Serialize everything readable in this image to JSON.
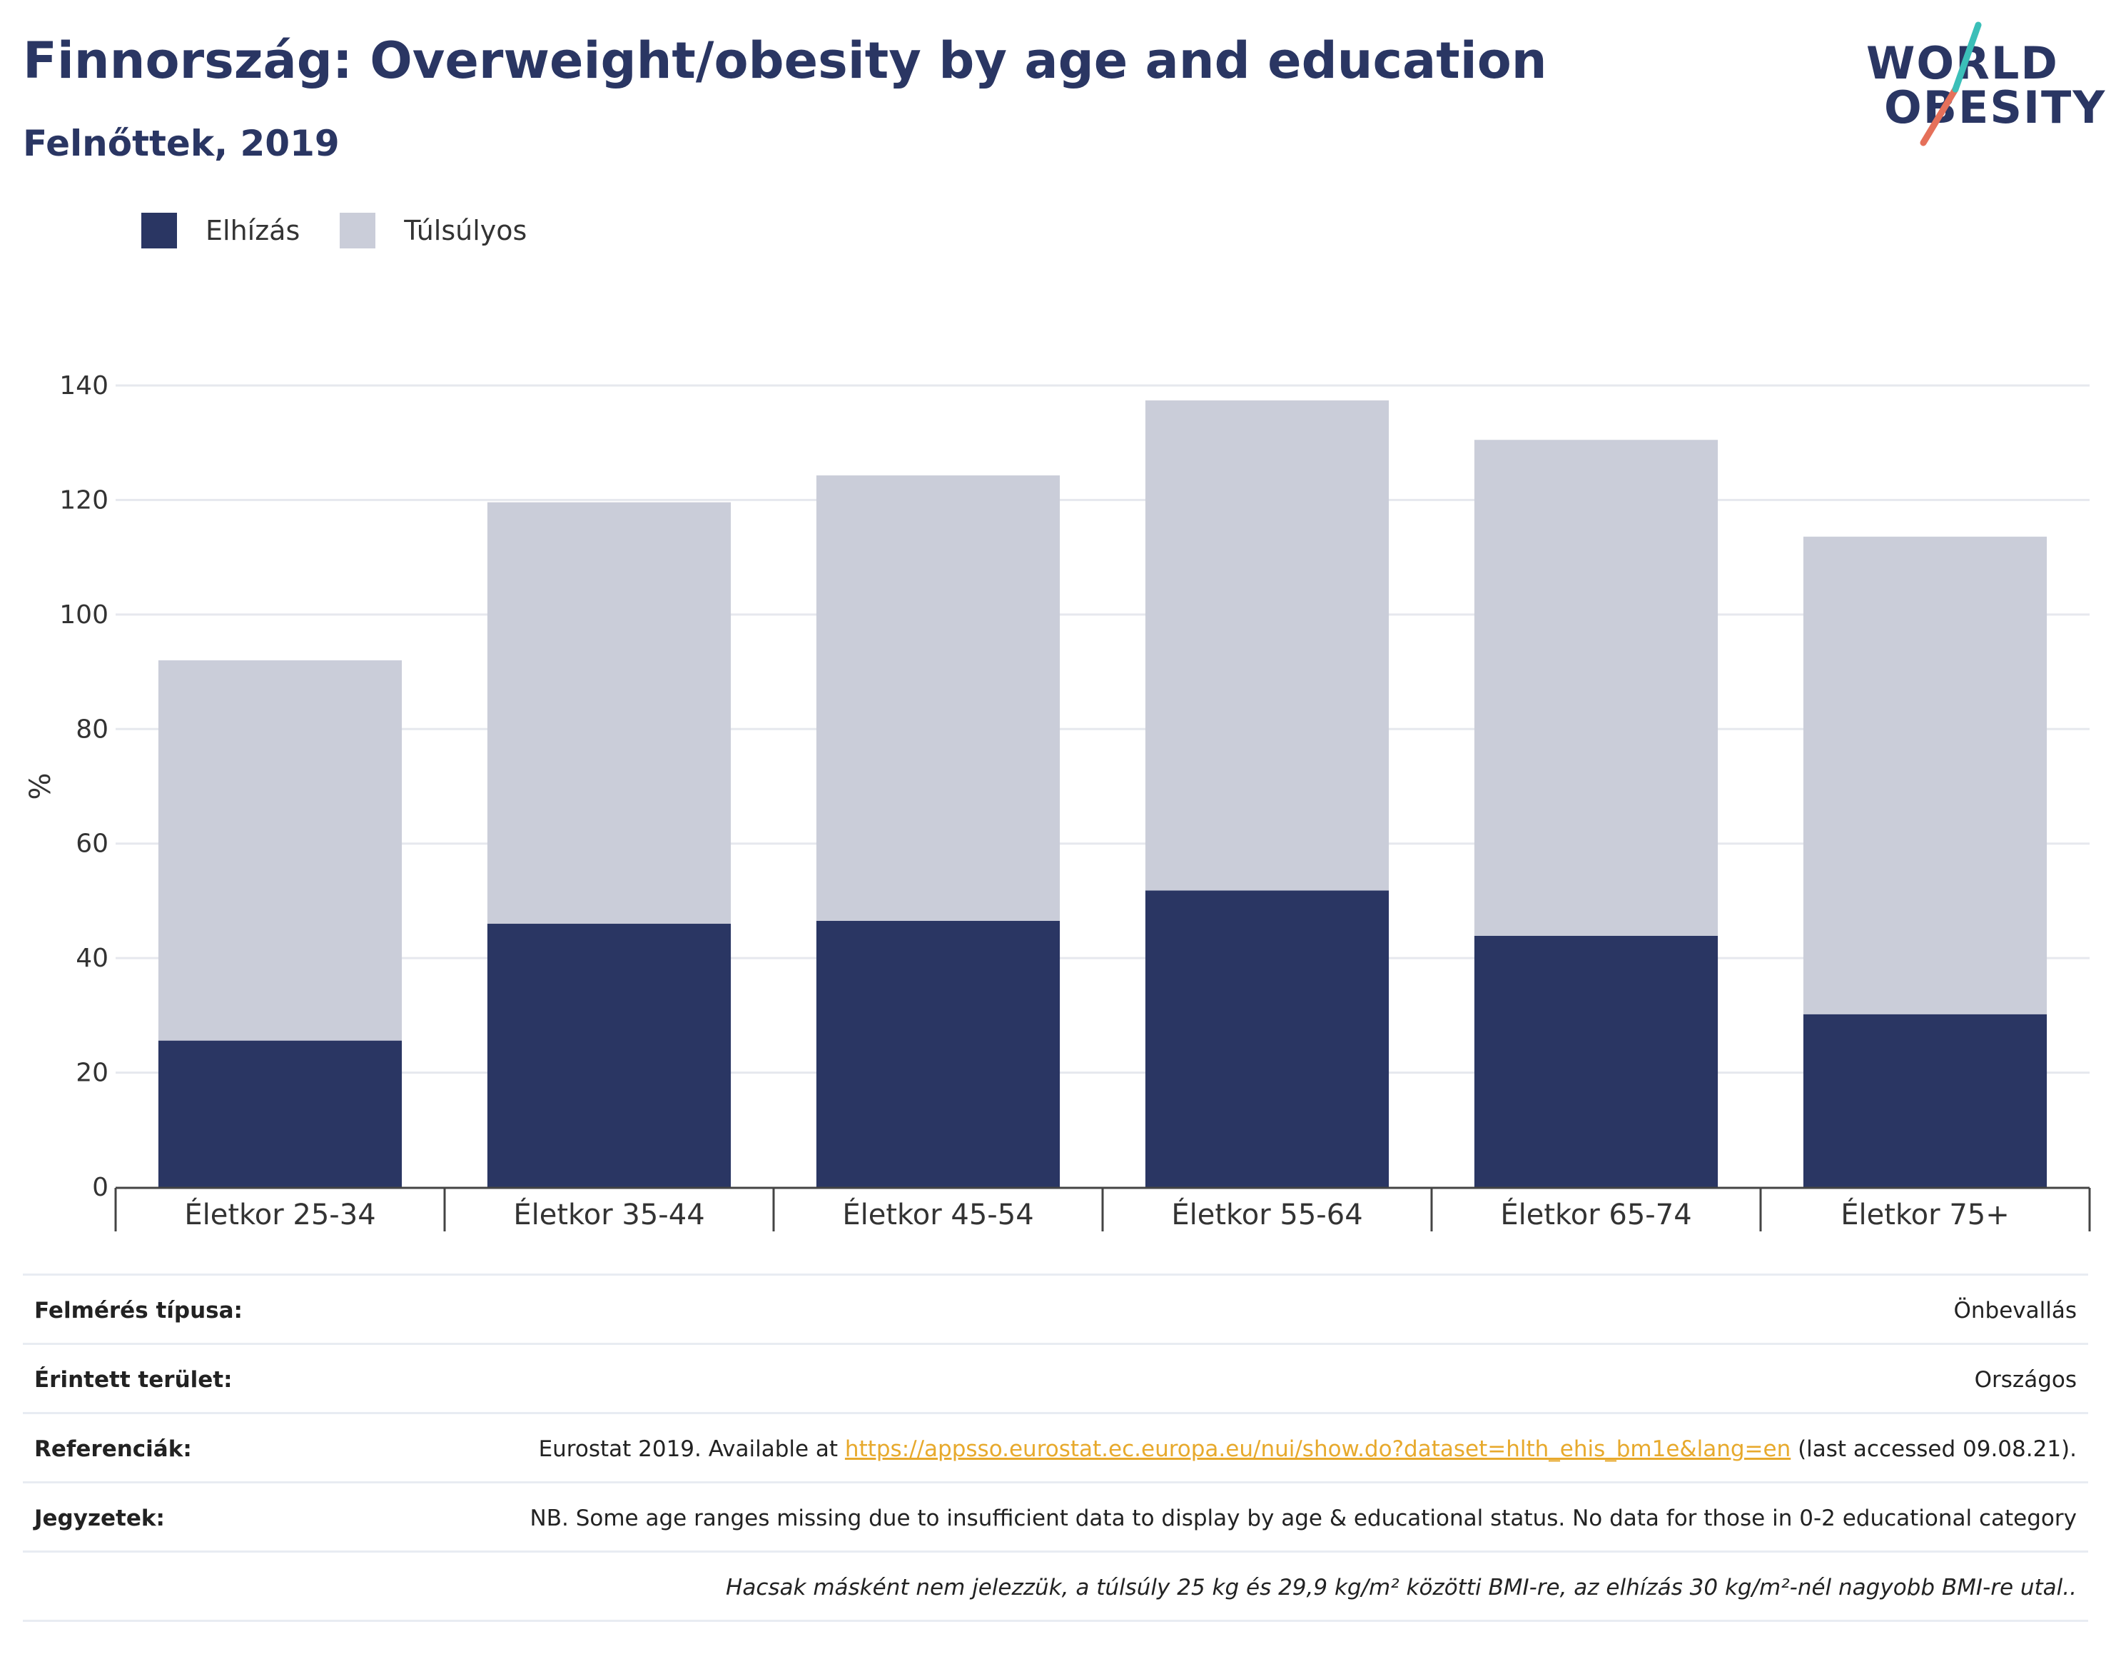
{
  "header": {
    "title": "Finnország: Overweight/obesity by age and education",
    "subtitle": "Felnőttek, 2019"
  },
  "logo": {
    "line1": "WORLD",
    "line2": "OBESITY"
  },
  "legend": [
    {
      "label": "Elhízás",
      "color": "#2a3663"
    },
    {
      "label": "Túlsúlyos",
      "color": "#cacdd9"
    }
  ],
  "chart_data": {
    "type": "bar",
    "stacked": true,
    "categories": [
      "Életkor 25-34",
      "Életkor 35-44",
      "Életkor 45-54",
      "Életkor 55-64",
      "Életkor 65-74",
      "Életkor 75+"
    ],
    "series": [
      {
        "name": "Elhízás",
        "color": "#2a3663",
        "values": [
          25.6,
          46.0,
          46.5,
          51.8,
          43.9,
          30.2
        ]
      },
      {
        "name": "Túlsúlyos",
        "color": "#cacdd9",
        "values": [
          66.4,
          73.6,
          77.8,
          85.6,
          86.6,
          83.4
        ]
      }
    ],
    "ylabel": "%",
    "ylim": [
      0,
      140
    ],
    "yticks": [
      0,
      20,
      40,
      60,
      80,
      100,
      120,
      140
    ],
    "grid": true,
    "legend_position": "top-left"
  },
  "info": {
    "survey_type_label": "Felmérés típusa:",
    "survey_type_value": "Önbevallás",
    "area_label": "Érintett terület:",
    "area_value": "Országos",
    "references_label": "Referenciák:",
    "references_prefix": "Eurostat 2019. Available at ",
    "references_link": "https://appsso.eurostat.ec.europa.eu/nui/show.do?dataset=hlth_ehis_bm1e&lang=en",
    "references_suffix": " (last accessed 09.08.21).",
    "notes_label": "Jegyzetek:",
    "notes_value": "NB. Some age ranges missing due to insufficient data to display by age & educational status. No data for those in 0-2 educational category",
    "footnote": "Hacsak másként nem jelezzük, a túlsúly 25 kg és 29,9 kg/m² közötti BMI-re, az elhízás 30 kg/m²-nél nagyobb BMI-re utal.."
  }
}
